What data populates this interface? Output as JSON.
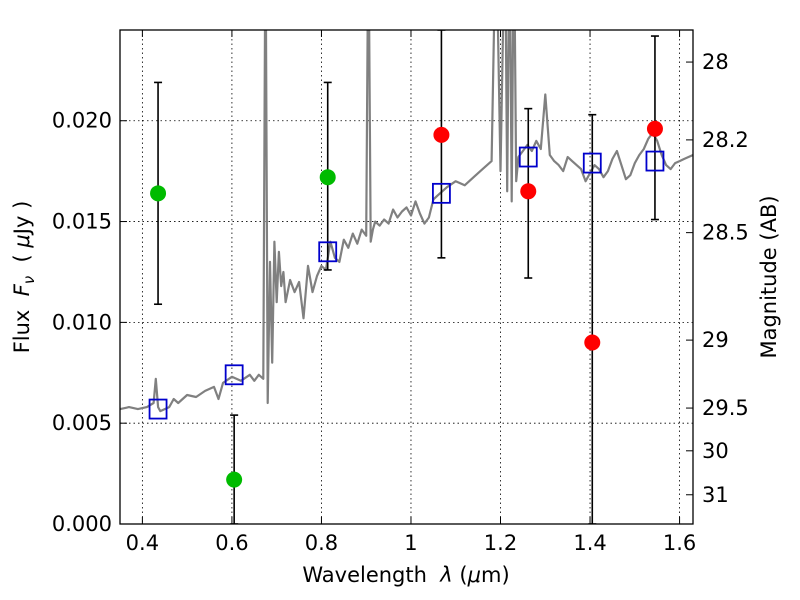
{
  "chart_data": {
    "type": "scatter",
    "xlabel": "Wavelength  λ (μm)",
    "xlabel_parts": {
      "prefix": "Wavelength  ",
      "symbol": "λ",
      "open": " (",
      "mu": "μ",
      "unit": "m)"
    },
    "ylabel_left": "Flux  Fν  ( μJy )",
    "ylabel_left_parts": {
      "prefix": "Flux  ",
      "F": "F",
      "nu": "ν",
      "open": "  ( ",
      "mu": "μ",
      "unit": "Jy )"
    },
    "ylabel_right": "Magnitude (AB)",
    "xlim": [
      0.35,
      1.63
    ],
    "ylim": [
      0.0,
      0.0245
    ],
    "x_ticks": [
      0.4,
      0.6,
      0.8,
      1.0,
      1.2,
      1.4,
      1.6
    ],
    "x_tick_labels": [
      "0.4",
      "0.6",
      "0.8",
      "1",
      "1.2",
      "1.4",
      "1.6"
    ],
    "y_ticks": [
      0.0,
      0.005,
      0.01,
      0.015,
      0.02
    ],
    "y_tick_labels": [
      "0.000",
      "0.005",
      "0.010",
      "0.015",
      "0.020"
    ],
    "right_ticks": [
      {
        "label": "28",
        "flux": 0.02291
      },
      {
        "label": "28.2",
        "flux": 0.01905
      },
      {
        "label": "28.5",
        "flux": 0.01445
      },
      {
        "label": "29",
        "flux": 0.00912
      },
      {
        "label": "29.5",
        "flux": 0.00575
      },
      {
        "label": "30",
        "flux": 0.00363
      },
      {
        "label": "31",
        "flux": 0.00145
      }
    ],
    "grid": true,
    "colors": {
      "spectrum": "#808080",
      "model_box": "#0000cc",
      "green_points": "#00bb00",
      "red_points": "#ff0000",
      "errorbar": "#000000"
    },
    "series": [
      {
        "marker": "circle",
        "color": "#00bb00",
        "points": [
          {
            "x": 0.435,
            "y": 0.0164,
            "err_low": 0.0109,
            "err_high": 0.0219
          },
          {
            "x": 0.605,
            "y": 0.0022,
            "err_low": 0.0,
            "err_high": 0.0054
          },
          {
            "x": 0.814,
            "y": 0.0172,
            "err_low": 0.0126,
            "err_high": 0.0219
          }
        ]
      },
      {
        "marker": "circle",
        "color": "#ff0000",
        "points": [
          {
            "x": 1.068,
            "y": 0.0193,
            "err_low": 0.0132,
            "err_high": 0.0245
          },
          {
            "x": 1.262,
            "y": 0.0165,
            "err_low": 0.0122,
            "err_high": 0.0206
          },
          {
            "x": 1.405,
            "y": 0.009,
            "err_low": 0.0,
            "err_high": 0.0203
          },
          {
            "x": 1.545,
            "y": 0.0196,
            "err_low": 0.0151,
            "err_high": 0.0242
          }
        ]
      },
      {
        "marker": "square",
        "color": "#0000cc",
        "points": [
          {
            "x": 0.435,
            "y": 0.0057
          },
          {
            "x": 0.605,
            "y": 0.0074
          },
          {
            "x": 0.814,
            "y": 0.0135
          },
          {
            "x": 1.068,
            "y": 0.0164
          },
          {
            "x": 1.262,
            "y": 0.0182
          },
          {
            "x": 1.405,
            "y": 0.0179
          },
          {
            "x": 1.545,
            "y": 0.018
          }
        ]
      }
    ],
    "spectrum": {
      "color": "#808080",
      "x": [
        0.35,
        0.37,
        0.39,
        0.41,
        0.425,
        0.43,
        0.435,
        0.44,
        0.46,
        0.47,
        0.48,
        0.5,
        0.52,
        0.54,
        0.56,
        0.57,
        0.58,
        0.6,
        0.62,
        0.64,
        0.65,
        0.66,
        0.67,
        0.675,
        0.68,
        0.685,
        0.69,
        0.695,
        0.7,
        0.705,
        0.71,
        0.715,
        0.72,
        0.73,
        0.74,
        0.75,
        0.76,
        0.77,
        0.78,
        0.79,
        0.8,
        0.81,
        0.82,
        0.83,
        0.84,
        0.85,
        0.86,
        0.87,
        0.88,
        0.89,
        0.9,
        0.905,
        0.91,
        0.915,
        0.92,
        0.93,
        0.94,
        0.95,
        0.96,
        0.97,
        0.98,
        0.99,
        1.0,
        1.01,
        1.02,
        1.03,
        1.04,
        1.05,
        1.06,
        1.08,
        1.1,
        1.12,
        1.14,
        1.16,
        1.18,
        1.19,
        1.2,
        1.21,
        1.215,
        1.22,
        1.225,
        1.23,
        1.235,
        1.24,
        1.25,
        1.26,
        1.27,
        1.28,
        1.29,
        1.3,
        1.31,
        1.32,
        1.33,
        1.34,
        1.35,
        1.36,
        1.37,
        1.38,
        1.39,
        1.4,
        1.41,
        1.42,
        1.43,
        1.44,
        1.45,
        1.46,
        1.47,
        1.48,
        1.49,
        1.5,
        1.51,
        1.52,
        1.53,
        1.54,
        1.55,
        1.56,
        1.57,
        1.58,
        1.59,
        1.6,
        1.61,
        1.62,
        1.63
      ],
      "y": [
        0.0057,
        0.0058,
        0.0057,
        0.0058,
        0.006,
        0.0072,
        0.0058,
        0.0056,
        0.0058,
        0.0062,
        0.006,
        0.0064,
        0.0063,
        0.0066,
        0.0068,
        0.0062,
        0.007,
        0.0073,
        0.0071,
        0.0074,
        0.0071,
        0.0074,
        0.0072,
        0.03,
        0.006,
        0.013,
        0.008,
        0.014,
        0.011,
        0.0135,
        0.0118,
        0.0125,
        0.011,
        0.0121,
        0.0115,
        0.012,
        0.0102,
        0.0128,
        0.0115,
        0.0123,
        0.0128,
        0.0126,
        0.014,
        0.0132,
        0.013,
        0.0141,
        0.0137,
        0.0144,
        0.0139,
        0.0146,
        0.0143,
        0.03,
        0.014,
        0.0146,
        0.015,
        0.0148,
        0.0151,
        0.0149,
        0.0156,
        0.0152,
        0.0155,
        0.0157,
        0.0153,
        0.016,
        0.0154,
        0.0149,
        0.0152,
        0.0161,
        0.0163,
        0.0167,
        0.017,
        0.0168,
        0.0172,
        0.0176,
        0.018,
        0.03,
        0.0175,
        0.03,
        0.0165,
        0.03,
        0.016,
        0.03,
        0.017,
        0.0182,
        0.0185,
        0.0188,
        0.0185,
        0.019,
        0.0186,
        0.0213,
        0.0183,
        0.018,
        0.0178,
        0.0175,
        0.0182,
        0.018,
        0.0178,
        0.0176,
        0.017,
        0.0174,
        0.0178,
        0.0176,
        0.0172,
        0.0175,
        0.0181,
        0.0185,
        0.0178,
        0.0171,
        0.0173,
        0.0179,
        0.0183,
        0.0186,
        0.0191,
        0.0194,
        0.019,
        0.0183,
        0.0178,
        0.0176,
        0.0179,
        0.018,
        0.0181,
        0.0182,
        0.0183
      ]
    }
  }
}
